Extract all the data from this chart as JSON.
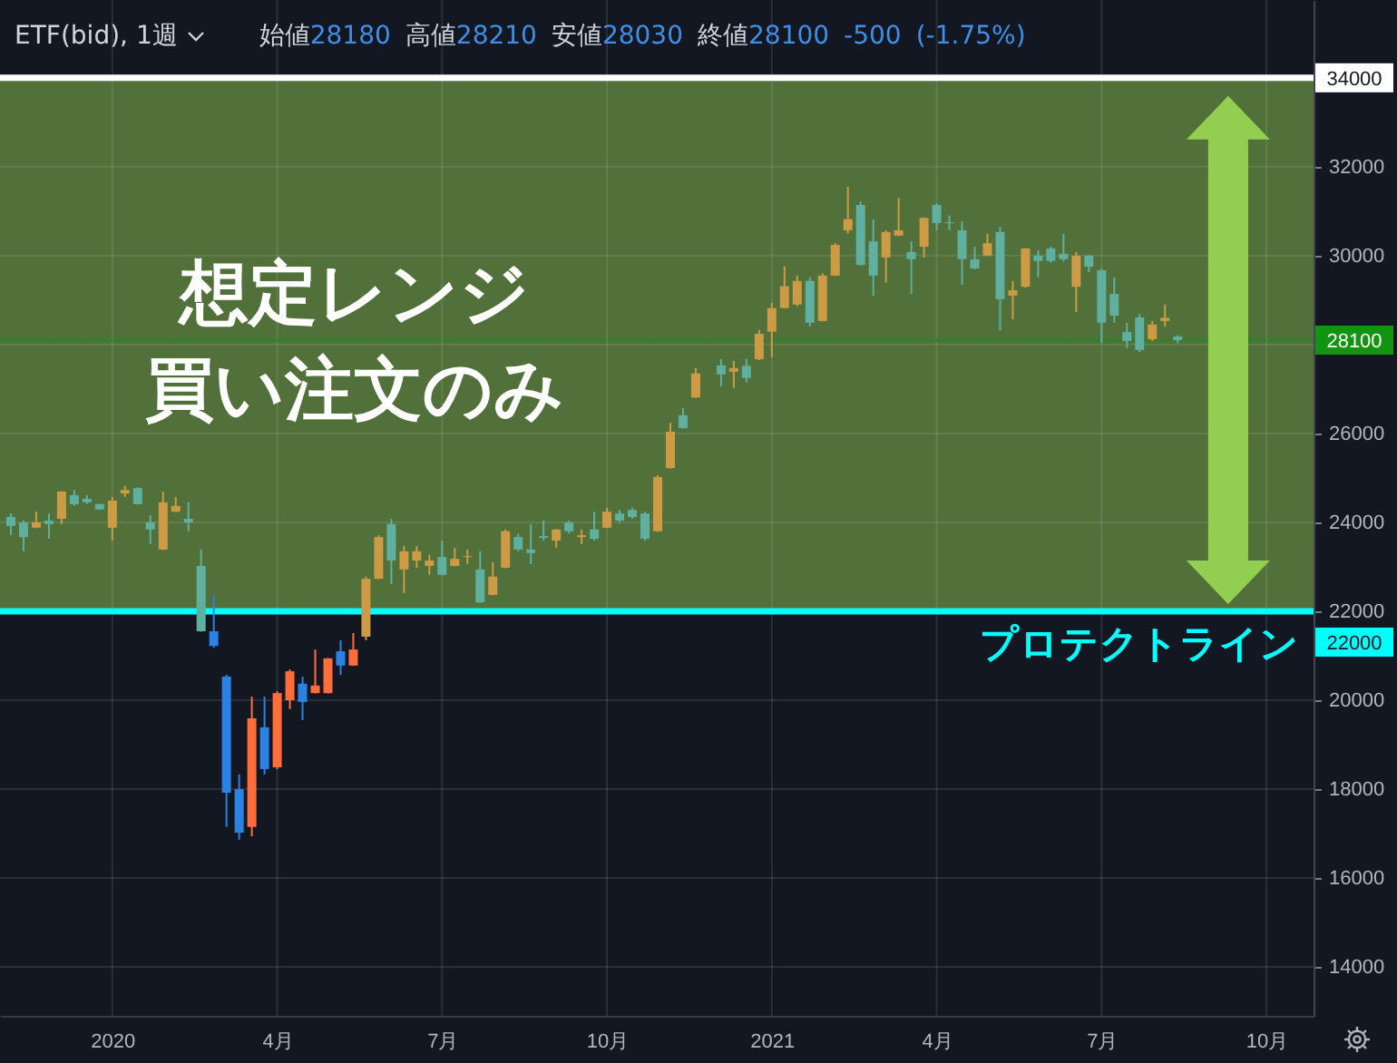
{
  "chart_data": {
    "type": "candlestick",
    "title": "ETF(bid), 1週",
    "subtitle": "始値28180 高値28210 安値28030 終値28100 -500 (-1.75%)",
    "x": [
      "2019-11-11",
      "2019-11-18",
      "2019-11-25",
      "2019-12-02",
      "2019-12-09",
      "2019-12-16",
      "2019-12-23",
      "2019-12-30",
      "2020-01-06",
      "2020-01-13",
      "2020-01-20",
      "2020-01-27",
      "2020-02-03",
      "2020-02-10",
      "2020-02-17",
      "2020-02-24",
      "2020-03-02",
      "2020-03-09",
      "2020-03-16",
      "2020-03-23",
      "2020-03-30",
      "2020-04-06",
      "2020-04-13",
      "2020-04-20",
      "2020-04-27",
      "2020-05-04",
      "2020-05-11",
      "2020-05-18",
      "2020-05-25",
      "2020-06-01",
      "2020-06-08",
      "2020-06-15",
      "2020-06-22",
      "2020-06-29",
      "2020-07-06",
      "2020-07-13",
      "2020-07-20",
      "2020-07-27",
      "2020-08-03",
      "2020-08-10",
      "2020-08-17",
      "2020-08-24",
      "2020-08-31",
      "2020-09-07",
      "2020-09-14",
      "2020-09-21",
      "2020-09-28",
      "2020-10-05",
      "2020-10-12",
      "2020-10-19",
      "2020-10-26",
      "2020-11-02",
      "2020-11-09",
      "2020-11-16",
      "2020-11-23",
      "2020-12-07",
      "2020-12-14",
      "2020-12-21",
      "2020-12-28",
      "2021-01-04",
      "2021-01-11",
      "2021-01-18",
      "2021-01-25",
      "2021-02-01",
      "2021-02-08",
      "2021-02-15",
      "2021-02-22",
      "2021-03-01",
      "2021-03-08",
      "2021-03-15",
      "2021-03-22",
      "2021-03-29",
      "2021-04-05",
      "2021-04-12",
      "2021-04-19",
      "2021-04-26",
      "2021-05-03",
      "2021-05-10",
      "2021-05-17",
      "2021-05-24",
      "2021-05-31",
      "2021-06-07",
      "2021-06-14",
      "2021-06-21",
      "2021-06-28",
      "2021-07-05",
      "2021-07-12",
      "2021-07-19",
      "2021-07-26",
      "2021-08-02",
      "2021-08-09",
      "2021-08-16"
    ],
    "ohlc": [
      [
        24120,
        24200,
        23710,
        23920
      ],
      [
        24000,
        24040,
        23350,
        23670
      ],
      [
        23880,
        24240,
        23870,
        24000
      ],
      [
        24040,
        24200,
        23630,
        23960
      ],
      [
        24080,
        24700,
        23960,
        24690
      ],
      [
        24610,
        24730,
        24370,
        24410
      ],
      [
        24530,
        24610,
        24410,
        24450
      ],
      [
        24410,
        24420,
        24280,
        24290
      ],
      [
        23880,
        24570,
        23590,
        24490
      ],
      [
        24650,
        24820,
        24570,
        24730
      ],
      [
        24770,
        24790,
        24400,
        24410
      ],
      [
        24000,
        24160,
        23510,
        23840
      ],
      [
        23390,
        24690,
        23380,
        24450
      ],
      [
        24240,
        24570,
        24230,
        24370
      ],
      [
        24080,
        24450,
        23800,
        24000
      ],
      [
        23020,
        23390,
        21540,
        21550
      ],
      [
        21550,
        22370,
        21180,
        21220
      ],
      [
        20530,
        20570,
        17150,
        17920
      ],
      [
        18000,
        18330,
        16860,
        17020
      ],
      [
        17150,
        20080,
        16940,
        19590
      ],
      [
        19390,
        20080,
        18330,
        18450
      ],
      [
        18490,
        20200,
        18450,
        20160
      ],
      [
        20000,
        20690,
        19800,
        20650
      ],
      [
        20370,
        20530,
        19550,
        19960
      ],
      [
        20160,
        21140,
        20150,
        20330
      ],
      [
        20160,
        20950,
        20150,
        20940
      ],
      [
        21100,
        21350,
        20570,
        20780
      ],
      [
        20780,
        21510,
        20770,
        21140
      ],
      [
        21430,
        22780,
        21350,
        22730
      ],
      [
        22730,
        23710,
        22720,
        23670
      ],
      [
        23960,
        24080,
        22610,
        23140
      ],
      [
        22940,
        23470,
        22410,
        23350
      ],
      [
        23140,
        23470,
        22980,
        23350
      ],
      [
        23020,
        23270,
        22820,
        23140
      ],
      [
        23220,
        23590,
        22810,
        22820
      ],
      [
        23020,
        23430,
        23010,
        23180
      ],
      [
        23220,
        23390,
        23060,
        23240
      ],
      [
        22940,
        23350,
        22190,
        22200
      ],
      [
        22370,
        23100,
        22360,
        22780
      ],
      [
        22980,
        23840,
        22970,
        23800
      ],
      [
        23670,
        23750,
        23350,
        23390
      ],
      [
        23390,
        23960,
        23060,
        23310
      ],
      [
        23690,
        24040,
        23590,
        23650
      ],
      [
        23590,
        23850,
        23430,
        23840
      ],
      [
        24000,
        24040,
        23750,
        23800
      ],
      [
        23670,
        23840,
        23510,
        23710
      ],
      [
        23840,
        24240,
        23590,
        23630
      ],
      [
        23880,
        24330,
        23870,
        24240
      ],
      [
        24200,
        24280,
        23990,
        24040
      ],
      [
        24280,
        24330,
        24080,
        24120
      ],
      [
        24200,
        24240,
        23590,
        23630
      ],
      [
        23800,
        25060,
        23790,
        25020
      ],
      [
        25220,
        26240,
        25210,
        26040
      ],
      [
        26410,
        26570,
        26110,
        26120
      ],
      [
        26810,
        27470,
        26800,
        27350
      ],
      [
        27530,
        27670,
        27060,
        27330
      ],
      [
        27390,
        27630,
        27020,
        27470
      ],
      [
        27520,
        27680,
        27150,
        27250
      ],
      [
        27670,
        28330,
        27650,
        28240
      ],
      [
        28290,
        28940,
        27710,
        28820
      ],
      [
        28820,
        29760,
        28810,
        29310
      ],
      [
        28900,
        29550,
        28860,
        29430
      ],
      [
        29430,
        29510,
        28410,
        28490
      ],
      [
        28530,
        29600,
        28520,
        29550
      ],
      [
        29550,
        30280,
        29540,
        30240
      ],
      [
        30570,
        31550,
        30500,
        30820
      ],
      [
        31140,
        31220,
        29780,
        29790
      ],
      [
        30320,
        30810,
        29100,
        29550
      ],
      [
        29960,
        30570,
        29390,
        30530
      ],
      [
        30450,
        31300,
        30440,
        30570
      ],
      [
        30080,
        30320,
        29140,
        29920
      ],
      [
        30200,
        30860,
        29960,
        30850
      ],
      [
        31140,
        31180,
        30570,
        30730
      ],
      [
        30750,
        30900,
        30570,
        30730
      ],
      [
        30570,
        30770,
        29340,
        29920
      ],
      [
        29920,
        30200,
        29700,
        29710
      ],
      [
        30000,
        30490,
        29990,
        30280
      ],
      [
        30530,
        30650,
        28320,
        29020
      ],
      [
        29100,
        29430,
        28570,
        29220
      ],
      [
        29300,
        30170,
        29280,
        30160
      ],
      [
        30000,
        30120,
        29510,
        29880
      ],
      [
        30160,
        30200,
        29840,
        29880
      ],
      [
        30040,
        30490,
        29870,
        29920
      ],
      [
        29300,
        30080,
        28730,
        30000
      ],
      [
        30000,
        30010,
        29630,
        29750
      ],
      [
        29670,
        29710,
        28040,
        28490
      ],
      [
        29140,
        29510,
        28490,
        28650
      ],
      [
        28280,
        28490,
        27920,
        28080
      ],
      [
        28610,
        28690,
        27830,
        27880
      ],
      [
        28120,
        28530,
        28080,
        28450
      ],
      [
        28530,
        28900,
        28410,
        28600
      ],
      [
        28180,
        28210,
        28030,
        28100
      ]
    ],
    "colors": [
      "#5fb0a0",
      "#5fb0a0",
      "#cd9b46",
      "#5fb0a0",
      "#cd9b46",
      "#5fb0a0",
      "#5fb0a0",
      "#5fb0a0",
      "#cd9b46",
      "#cd9b46",
      "#5fb0a0",
      "#5fb0a0",
      "#cd9b46",
      "#cd9b46",
      "#5fb0a0",
      "#5fb0a0",
      "#2a82e4",
      "#2a82e4",
      "#2a82e4",
      "#ff6d3a",
      "#2a82e4",
      "#ff6d3a",
      "#ff6d3a",
      "#2a82e4",
      "#ff6d3a",
      "#ff6d3a",
      "#2a82e4",
      "#ff6d3a",
      "#cd9b46",
      "#cd9b46",
      "#5fb0a0",
      "#cd9b46",
      "#cd9b46",
      "#cd9b46",
      "#5fb0a0",
      "#cd9b46",
      "#cd9b46",
      "#5fb0a0",
      "#cd9b46",
      "#cd9b46",
      "#5fb0a0",
      "#5fb0a0",
      "#5fb0a0",
      "#cd9b46",
      "#5fb0a0",
      "#cd9b46",
      "#5fb0a0",
      "#cd9b46",
      "#5fb0a0",
      "#5fb0a0",
      "#5fb0a0",
      "#cd9b46",
      "#cd9b46",
      "#5fb0a0",
      "#cd9b46",
      "#5fb0a0",
      "#cd9b46",
      "#5fb0a0",
      "#cd9b46",
      "#cd9b46",
      "#cd9b46",
      "#cd9b46",
      "#5fb0a0",
      "#cd9b46",
      "#cd9b46",
      "#cd9b46",
      "#5fb0a0",
      "#5fb0a0",
      "#cd9b46",
      "#cd9b46",
      "#5fb0a0",
      "#cd9b46",
      "#5fb0a0",
      "#5fb0a0",
      "#5fb0a0",
      "#5fb0a0",
      "#cd9b46",
      "#5fb0a0",
      "#cd9b46",
      "#cd9b46",
      "#5fb0a0",
      "#5fb0a0",
      "#5fb0a0",
      "#cd9b46",
      "#5fb0a0",
      "#5fb0a0",
      "#5fb0a0",
      "#5fb0a0",
      "#5fb0a0",
      "#cd9b46",
      "#cd9b46",
      "#5fb0a0"
    ],
    "xlim": [
      "2019-11-05",
      "2021-10-30"
    ],
    "ylim": [
      12900,
      35750
    ],
    "xticks": [
      {
        "value": "2020-01-06",
        "label": "2020"
      },
      {
        "value": "2020-04-06",
        "label": "4月"
      },
      {
        "value": "2020-07-06",
        "label": "7月"
      },
      {
        "value": "2020-10-05",
        "label": "10月"
      },
      {
        "value": "2021-01-04",
        "label": "2021"
      },
      {
        "value": "2021-04-05",
        "label": "4月"
      },
      {
        "value": "2021-07-05",
        "label": "7月"
      },
      {
        "value": "2021-10-04",
        "label": "10月"
      }
    ],
    "yticks": [
      14000,
      16000,
      18000,
      20000,
      22000,
      24000,
      26000,
      {
        "value": 28000,
        "label": null
      },
      30000,
      32000,
      {
        "value": 34000,
        "label": null
      }
    ],
    "grid": true,
    "bands": [
      {
        "axis": "y",
        "from": 22000,
        "to": 34000,
        "label": "想定レンジ",
        "color": "#51703a"
      }
    ],
    "ref_lines": [
      {
        "axis": "y",
        "value": 34000,
        "label": "34000",
        "color": "#ffffff"
      },
      {
        "axis": "y",
        "value": 22000,
        "label": "22000",
        "color": "#00ffff"
      },
      {
        "axis": "y",
        "value": 28100,
        "label": "28100",
        "color": "#129412",
        "line_style": "dotted"
      }
    ],
    "annotations": [
      "買い注文のみ",
      {
        "text": "プロテクトライン",
        "y": 22000
      }
    ]
  }
}
